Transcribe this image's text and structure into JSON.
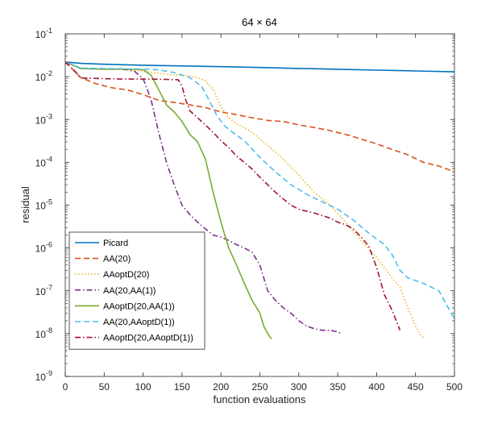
{
  "chart_data": {
    "type": "line",
    "title": "64 × 64",
    "xlabel": "function evaluations",
    "ylabel": "residual",
    "xlim": [
      0,
      500
    ],
    "ylim_log10": [
      -9,
      -1
    ],
    "yscale": "log",
    "x_ticks": [
      "0",
      "50",
      "100",
      "150",
      "200",
      "250",
      "300",
      "350",
      "400",
      "450",
      "500"
    ],
    "y_ticks": [
      {
        "base": "10",
        "exp": "-9"
      },
      {
        "base": "10",
        "exp": "-8"
      },
      {
        "base": "10",
        "exp": "-7"
      },
      {
        "base": "10",
        "exp": "-6"
      },
      {
        "base": "10",
        "exp": "-5"
      },
      {
        "base": "10",
        "exp": "-4"
      },
      {
        "base": "10",
        "exp": "-3"
      },
      {
        "base": "10",
        "exp": "-2"
      },
      {
        "base": "10",
        "exp": "-1"
      }
    ],
    "legend_position": "bottom-left",
    "series": [
      {
        "name": "Picard",
        "color": "#0072BD",
        "style": "solid",
        "x": [
          0,
          20,
          50,
          100,
          150,
          200,
          250,
          300,
          350,
          400,
          450,
          500
        ],
        "y": [
          0.022,
          0.0205,
          0.0195,
          0.0185,
          0.0178,
          0.0171,
          0.0164,
          0.0156,
          0.0149,
          0.0142,
          0.0136,
          0.013
        ]
      },
      {
        "name": "AA(20)",
        "color": "#D95319",
        "style": "dashed",
        "x": [
          0,
          20,
          40,
          60,
          80,
          100,
          120,
          140,
          160,
          180,
          200,
          220,
          240,
          260,
          280,
          300,
          320,
          340,
          360,
          380,
          400,
          420,
          440,
          460,
          480,
          500
        ],
        "y": [
          0.022,
          0.0095,
          0.0068,
          0.0055,
          0.0049,
          0.0038,
          0.0028,
          0.0025,
          0.0022,
          0.0019,
          0.0015,
          0.0013,
          0.0011,
          0.00095,
          0.0009,
          0.00075,
          0.00065,
          0.00055,
          0.00045,
          0.00035,
          0.00027,
          0.0002,
          0.00015,
          0.0001,
          8.2e-05,
          6e-05
        ]
      },
      {
        "name": "AAoptD(20)",
        "color": "#EDB120",
        "style": "dotted",
        "x": [
          0,
          20,
          50,
          75,
          100,
          120,
          140,
          160,
          170,
          180,
          190,
          200,
          210,
          220,
          230,
          240,
          250,
          260,
          280,
          300,
          320,
          340,
          360,
          380,
          400,
          420,
          430,
          440,
          450,
          455,
          460
        ],
        "y": [
          0.022,
          0.0155,
          0.015,
          0.0148,
          0.0135,
          0.012,
          0.011,
          0.0105,
          0.0095,
          0.008,
          0.005,
          0.002,
          0.0011,
          0.0008,
          0.00065,
          0.0005,
          0.00035,
          0.00025,
          0.00012,
          5e-05,
          2e-05,
          1e-05,
          4e-06,
          1.5e-06,
          6e-07,
          2e-07,
          1.2e-07,
          4e-08,
          1.5e-08,
          1e-08,
          8e-09
        ]
      },
      {
        "name": "AA(20,AA(1))",
        "color": "#7E2F8E",
        "style": "dashdot",
        "x": [
          0,
          20,
          50,
          70,
          80,
          90,
          100,
          110,
          120,
          130,
          140,
          150,
          160,
          170,
          180,
          190,
          200,
          210,
          220,
          230,
          240,
          250,
          260,
          270,
          280,
          290,
          300,
          310,
          320,
          330,
          340,
          350,
          355
        ],
        "y": [
          0.022,
          0.0155,
          0.015,
          0.015,
          0.0145,
          0.013,
          0.009,
          0.003,
          0.0005,
          0.0001,
          3e-05,
          1e-05,
          6e-06,
          4e-06,
          2.8e-06,
          2e-06,
          1.8e-06,
          1.5e-06,
          1.2e-06,
          1e-06,
          8e-07,
          4e-07,
          1e-07,
          6e-08,
          4e-08,
          3e-08,
          2e-08,
          1.5e-08,
          1.3e-08,
          1.2e-08,
          1.2e-08,
          1.1e-08,
          1e-08
        ]
      },
      {
        "name": "AAoptD(20,AA(1))",
        "color": "#77AC30",
        "style": "solid",
        "x": [
          0,
          20,
          50,
          75,
          90,
          100,
          110,
          120,
          130,
          140,
          150,
          160,
          170,
          180,
          190,
          200,
          210,
          220,
          230,
          240,
          250,
          255,
          260,
          265
        ],
        "y": [
          0.022,
          0.0155,
          0.015,
          0.015,
          0.0148,
          0.0145,
          0.011,
          0.005,
          0.0022,
          0.0015,
          0.0009,
          0.00045,
          0.0003,
          0.00012,
          2e-05,
          4e-06,
          1e-06,
          4e-07,
          1.5e-07,
          6e-08,
          3e-08,
          1.5e-08,
          1e-08,
          7.5e-09
        ]
      },
      {
        "name": "AA(20,AAoptD(1))",
        "color": "#4DBEEE",
        "style": "dashed",
        "x": [
          0,
          20,
          50,
          75,
          100,
          120,
          140,
          160,
          175,
          185,
          195,
          205,
          215,
          230,
          250,
          270,
          290,
          310,
          330,
          350,
          370,
          390,
          410,
          420,
          430,
          440,
          460,
          480,
          500
        ],
        "y": [
          0.022,
          0.016,
          0.0155,
          0.0153,
          0.015,
          0.0145,
          0.0125,
          0.0095,
          0.006,
          0.0028,
          0.0012,
          0.0007,
          0.0005,
          0.00032,
          0.00013,
          6e-05,
          3e-05,
          1.8e-05,
          1.2e-05,
          8e-06,
          4.5e-06,
          2.2e-06,
          1.2e-06,
          7e-07,
          3e-07,
          2e-07,
          1.5e-07,
          1e-07,
          2.2e-08
        ]
      },
      {
        "name": "AAoptD(20,AAoptD(1))",
        "color": "#A2142F",
        "style": "dashdot",
        "x": [
          0,
          10,
          20,
          50,
          75,
          100,
          120,
          145,
          150,
          155,
          160,
          170,
          180,
          190,
          200,
          210,
          220,
          230,
          240,
          250,
          260,
          270,
          280,
          290,
          300,
          320,
          340,
          350,
          360,
          370,
          380,
          390,
          400,
          410,
          420,
          430
        ],
        "y": [
          0.022,
          0.015,
          0.0093,
          0.009,
          0.0088,
          0.0088,
          0.0087,
          0.0085,
          0.006,
          0.0028,
          0.0016,
          0.0011,
          0.00075,
          0.0005,
          0.00032,
          0.00022,
          0.00014,
          0.0001,
          7e-05,
          4.5e-05,
          3e-05,
          2e-05,
          1.4e-05,
          1e-05,
          8e-06,
          6.5e-06,
          5e-06,
          4e-06,
          3.5e-06,
          2.8e-06,
          1.8e-06,
          1.1e-06,
          3.5e-07,
          8e-08,
          3.5e-08,
          1.2e-08
        ]
      }
    ]
  }
}
